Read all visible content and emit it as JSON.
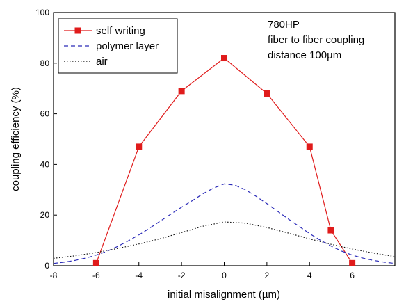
{
  "chart_data": {
    "type": "line",
    "xlabel": "initial misalignment (µm)",
    "ylabel": "coupling efficiency (%)",
    "xlim": [
      -8,
      8
    ],
    "ylim": [
      0,
      100
    ],
    "xticks": [
      -8,
      -6,
      -4,
      -2,
      0,
      2,
      4,
      6
    ],
    "yticks": [
      0,
      20,
      40,
      60,
      80,
      100
    ],
    "grid": false,
    "legend_position": "top-left",
    "annotation": [
      "780HP",
      "fiber to fiber coupling",
      "distance 100µm"
    ],
    "series": [
      {
        "name": "self writing",
        "style": "solid-square-markers",
        "color": "#e01b1b",
        "x": [
          -6,
          -4,
          -2,
          0,
          2,
          4,
          5,
          6
        ],
        "y": [
          1,
          47,
          69,
          82,
          68,
          47,
          14,
          1
        ]
      },
      {
        "name": "polymer layer",
        "style": "dashed",
        "color": "#2a2ab8",
        "x": [
          -8,
          -7.5,
          -7,
          -6.5,
          -6,
          -5.5,
          -5,
          -4.5,
          -4,
          -3.5,
          -3,
          -2.5,
          -2,
          -1.5,
          -1,
          -0.5,
          0,
          0.5,
          1,
          1.5,
          2,
          2.5,
          3,
          3.5,
          4,
          4.5,
          5,
          5.5,
          6,
          6.5,
          7,
          7.5,
          8
        ],
        "y": [
          0.9,
          1.4,
          2.1,
          3.0,
          4.2,
          5.7,
          7.6,
          9.8,
          12.2,
          14.8,
          17.6,
          20.4,
          23.1,
          25.7,
          28.4,
          30.7,
          32.3,
          31.8,
          30.0,
          27.4,
          24.5,
          21.5,
          18.5,
          15.6,
          12.7,
          10.1,
          7.8,
          5.8,
          4.2,
          3.0,
          2.1,
          1.4,
          0.9
        ]
      },
      {
        "name": "air",
        "style": "dotted",
        "color": "#111111",
        "x": [
          -8,
          -7,
          -6,
          -5,
          -4,
          -3,
          -2,
          -1,
          0,
          1,
          2,
          3,
          4,
          5,
          6,
          7,
          8
        ],
        "y": [
          2.9,
          3.9,
          5.2,
          6.8,
          8.6,
          10.7,
          13.1,
          15.6,
          17.3,
          16.8,
          15.1,
          12.9,
          10.6,
          8.5,
          6.6,
          5.0,
          3.6
        ]
      }
    ]
  }
}
